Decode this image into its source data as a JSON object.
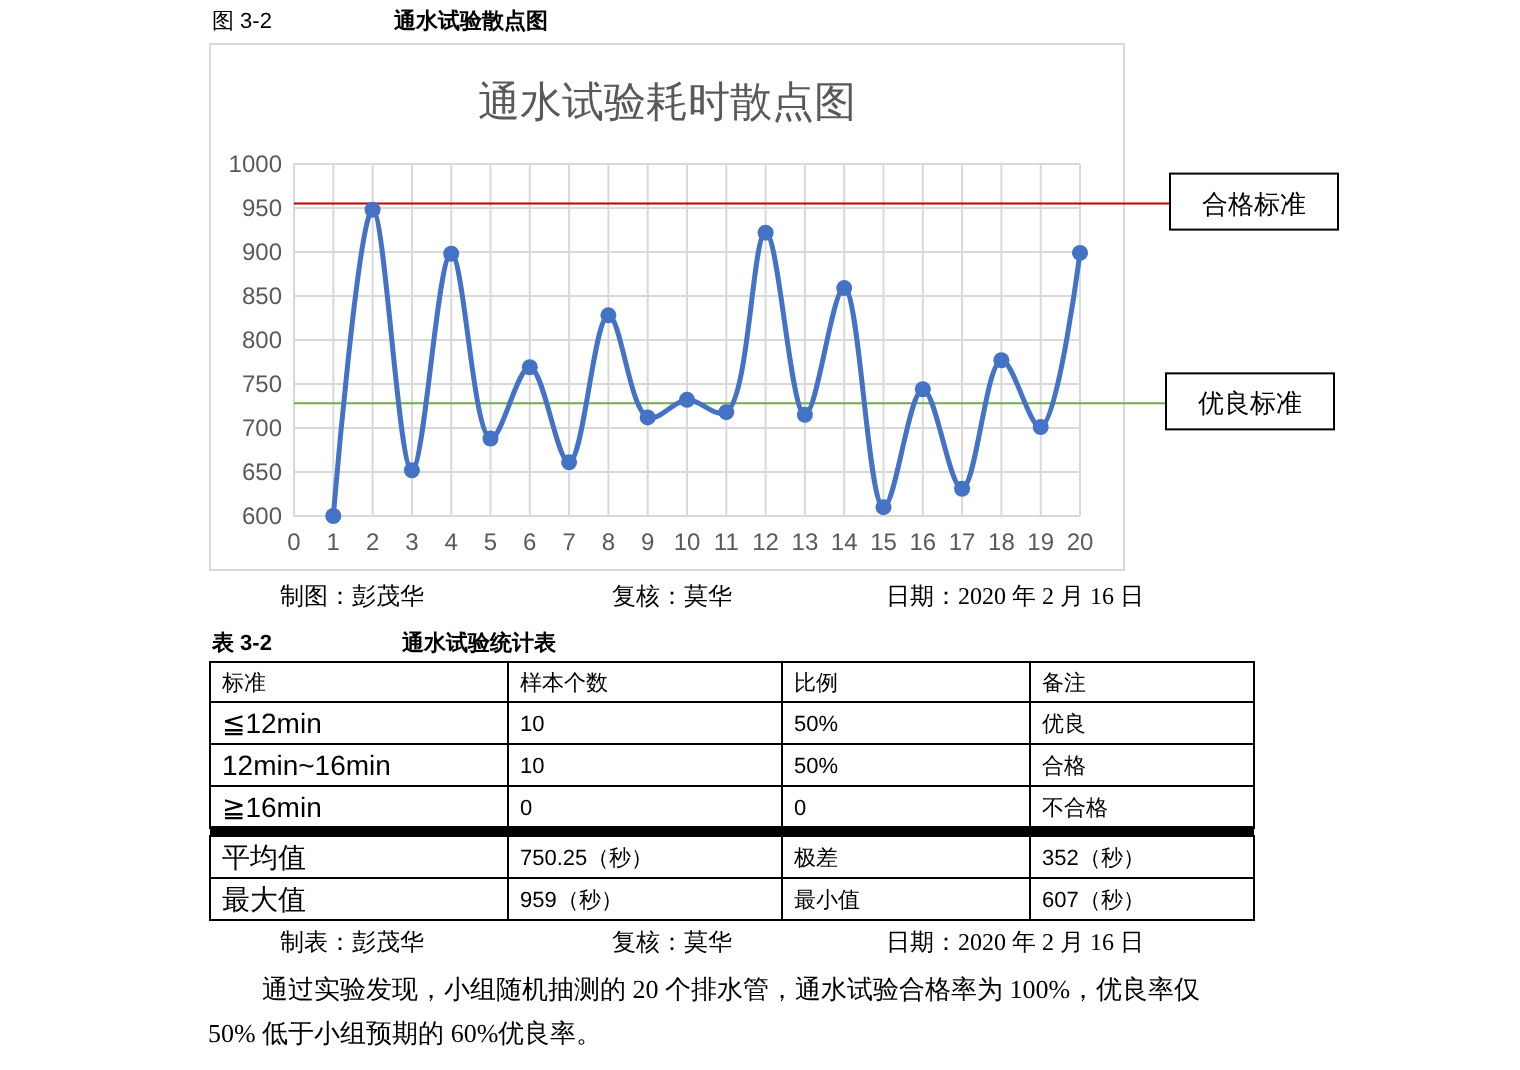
{
  "chart_data": [
    {
      "type": "line",
      "title": "通水试验耗时散点图",
      "x": [
        1,
        2,
        3,
        4,
        5,
        6,
        7,
        8,
        9,
        10,
        11,
        12,
        13,
        14,
        15,
        16,
        17,
        18,
        19,
        20
      ],
      "series": [
        {
          "color": "#4472c4",
          "values": [
            600,
            948,
            652,
            898,
            688,
            769,
            661,
            828,
            712,
            732,
            718,
            922,
            715,
            859,
            610,
            744,
            631,
            777,
            701,
            899
          ]
        }
      ],
      "xlim": [
        0,
        20
      ],
      "xticks": [
        0,
        1,
        2,
        3,
        4,
        5,
        6,
        7,
        8,
        9,
        10,
        11,
        12,
        13,
        14,
        15,
        16,
        17,
        18,
        19,
        20
      ],
      "ylim": [
        600,
        1000
      ],
      "yticks": [
        600,
        650,
        700,
        750,
        800,
        850,
        900,
        950,
        1000
      ],
      "grid": true,
      "marker": "circle",
      "line_style": "solid",
      "ref_lines": [
        {
          "axis": "y",
          "value": 955,
          "label": "合格标准",
          "color": "#c00000"
        },
        {
          "axis": "y",
          "value": 728,
          "label": "优良标准",
          "color": "#70ad47"
        }
      ],
      "annotations": [
        "图 3-2",
        "通水试验散点图",
        "制图：彭茂华",
        "复核：莫华",
        "日期：2020 年 2 月 16 日"
      ]
    },
    {
      "type": "other",
      "title": "通水试验统计表",
      "subtitle": "表 3-2",
      "cell_labels": [
        [
          "标准",
          "样本个数",
          "比例",
          "备注"
        ],
        [
          "≦12min",
          "10",
          "50%",
          "优良"
        ],
        [
          "12min~16min",
          "10",
          "50%",
          "合格"
        ],
        [
          "≧16min",
          "0",
          "0",
          "不合格"
        ],
        [
          "平均值",
          "750.25（秒）",
          "极差",
          "352（秒）"
        ],
        [
          "最大值",
          "959（秒）",
          "最小值",
          "607（秒）"
        ]
      ],
      "annotations": [
        "制表：彭茂华",
        "复核：莫华",
        "日期：2020 年 2 月 16 日",
        "通过实验发现，小组随机抽测的 20 个排水管，通水试验合格率为 100%，优良率仅",
        "50% 低于小组预期的 60%优良率。"
      ]
    }
  ]
}
